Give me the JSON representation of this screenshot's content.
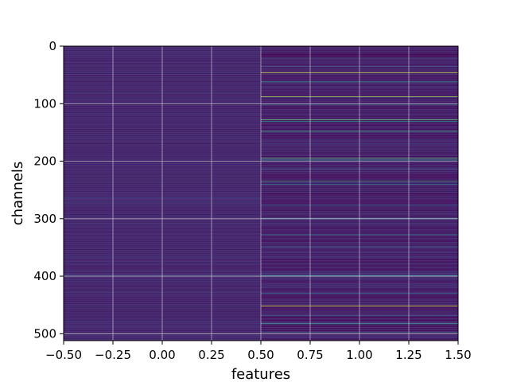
{
  "chart_data": {
    "type": "heatmap",
    "title": "",
    "xlabel": "features",
    "ylabel": "channels",
    "xlim": [
      -0.5,
      1.5
    ],
    "ylim": [
      512,
      0
    ],
    "x_ticks": [
      "−0.50",
      "−0.25",
      "0.00",
      "0.25",
      "0.50",
      "0.75",
      "1.00",
      "1.25",
      "1.50"
    ],
    "x_tick_values": [
      -0.5,
      -0.25,
      0.0,
      0.25,
      0.5,
      0.75,
      1.0,
      1.25,
      1.5
    ],
    "y_ticks": [
      "0",
      "100",
      "200",
      "300",
      "400",
      "500"
    ],
    "y_tick_values": [
      0,
      100,
      200,
      300,
      400,
      500
    ],
    "grid": true,
    "colormap": "viridis",
    "columns": [
      0,
      1
    ],
    "n_channels": 512,
    "column_0": {
      "base_value": 0.1,
      "highlight_rows": [
        [
          264,
          0.22
        ],
        [
          270,
          0.18
        ],
        [
          398,
          0.25
        ],
        [
          478,
          0.2
        ]
      ]
    },
    "column_1": {
      "base_value": 0.08,
      "highlight_rows": [
        [
          22,
          0.3
        ],
        [
          35,
          0.25
        ],
        [
          46,
          0.95
        ],
        [
          62,
          0.55
        ],
        [
          88,
          0.85
        ],
        [
          102,
          0.3
        ],
        [
          128,
          0.75
        ],
        [
          131,
          0.5
        ],
        [
          148,
          0.6
        ],
        [
          170,
          0.28
        ],
        [
          195,
          0.7
        ],
        [
          198,
          0.45
        ],
        [
          214,
          0.3
        ],
        [
          235,
          0.6
        ],
        [
          240,
          0.4
        ],
        [
          276,
          0.3
        ],
        [
          299,
          0.45
        ],
        [
          328,
          0.4
        ],
        [
          350,
          0.3
        ],
        [
          399,
          0.5
        ],
        [
          430,
          0.35
        ],
        [
          452,
          0.95
        ],
        [
          468,
          0.3
        ],
        [
          482,
          0.55
        ],
        [
          497,
          0.35
        ]
      ]
    }
  }
}
